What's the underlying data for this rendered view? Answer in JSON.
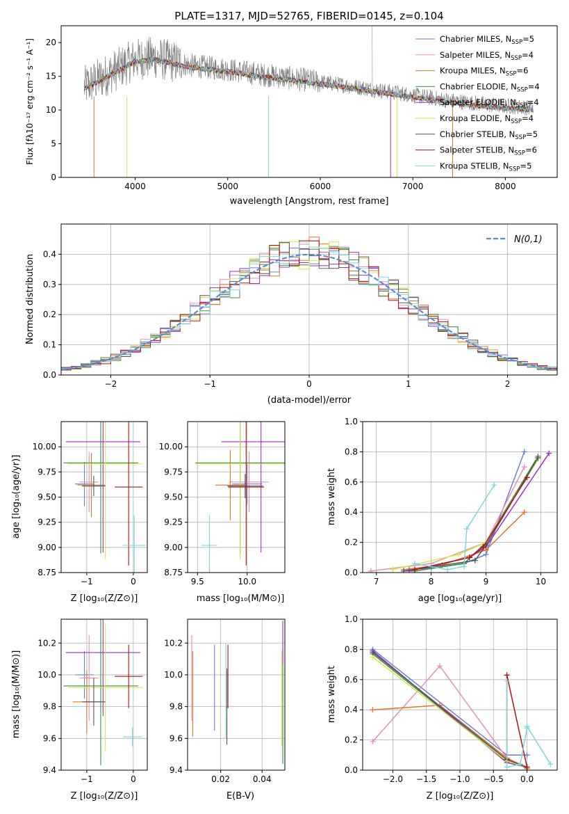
{
  "figure_title": "PLATE=1317, MJD=52765, FIBERID=0145, z=0.104",
  "series_styles": [
    {
      "model": "Chabrier MILES",
      "nssp": "5",
      "color": "#6a7fd6"
    },
    {
      "model": "Salpeter MILES",
      "nssp": "4",
      "color": "#e68fb8"
    },
    {
      "model": "Kroupa MILES",
      "nssp": "6",
      "color": "#e0772c"
    },
    {
      "model": "Chabrier ELODIE",
      "nssp": "4",
      "color": "#3d8f3d"
    },
    {
      "model": "Salpeter ELODIE",
      "nssp": "4",
      "color": "#9d2ec0"
    },
    {
      "model": "Kroupa ELODIE",
      "nssp": "4",
      "color": "#cfe84a"
    },
    {
      "model": "Chabrier STELIB",
      "nssp": "5",
      "color": "#555555"
    },
    {
      "model": "Salpeter STELIB",
      "nssp": "6",
      "color": "#b01212"
    },
    {
      "model": "Kroupa STELIB",
      "nssp": "5",
      "color": "#7fd6dc"
    }
  ],
  "chart_data": [
    {
      "id": "spectrum",
      "type": "line",
      "title": "PLATE=1317, MJD=52765, FIBERID=0145, z=0.104",
      "xlabel": "wavelength [Angstrom, rest frame]",
      "ylabel": "Flux [fλ10⁻¹⁷ erg cm⁻² s⁻¹ A⁻¹]",
      "xlim": [
        3200,
        8560
      ],
      "ylim": [
        0,
        22.5
      ],
      "xticks": [
        4000,
        5000,
        6000,
        7000,
        8000
      ],
      "yticks": [
        0,
        5,
        10,
        15,
        20
      ],
      "grid": false,
      "legend": "top-right",
      "data_color": "#7f7f7f",
      "continuum": {
        "x": [
          3450,
          3600,
          3800,
          4000,
          4200,
          4400,
          4600,
          5000,
          5400,
          5800,
          6200,
          6600,
          7000,
          7400,
          7800,
          8300
        ],
        "y": [
          13.5,
          14.5,
          16.0,
          17.5,
          17.8,
          17.2,
          16.6,
          16.0,
          15.2,
          14.5,
          13.8,
          13.0,
          12.2,
          11.4,
          10.8,
          10.3
        ]
      },
      "series": [
        {
          "name": "Chabrier MILES, N_SSP=5"
        },
        {
          "name": "Salpeter MILES, N_SSP=4"
        },
        {
          "name": "Kroupa MILES, N_SSP=6"
        },
        {
          "name": "Chabrier ELODIE, N_SSP=4"
        },
        {
          "name": "Salpeter ELODIE, N_SSP=4"
        },
        {
          "name": "Kroupa ELODIE, N_SSP=4"
        },
        {
          "name": "Chabrier STELIB, N_SSP=5"
        },
        {
          "name": "Salpeter STELIB, N_SSP=6"
        },
        {
          "name": "Kroupa STELIB, N_SSP=5"
        }
      ]
    },
    {
      "id": "residuals",
      "type": "histogram",
      "xlabel": "(data-model)/error",
      "ylabel": "Normed distribution",
      "xlim": [
        -2.5,
        2.5
      ],
      "ylim": [
        0,
        0.5
      ],
      "xticks": [
        -2,
        -1,
        0,
        1,
        2
      ],
      "yticks": [
        0.0,
        0.1,
        0.2,
        0.3,
        0.4
      ],
      "grid": true,
      "legend": "top-right",
      "reference_curve": {
        "name": "N(0,1)",
        "style": "dashed",
        "color": "#5b8ad6"
      },
      "bin_width": 0.1
    },
    {
      "id": "age_vs_Z",
      "type": "errorbar",
      "xlabel": "Z [log₁₀(Z/Z⊙)]",
      "ylabel": "age [log₁₀(age/yr)]",
      "xlim": [
        -1.55,
        0.3
      ],
      "ylim": [
        8.75,
        10.25
      ],
      "xticks": [
        -1,
        0
      ],
      "yticks": [
        8.75,
        9.0,
        9.25,
        9.5,
        9.75,
        10.0
      ],
      "grid": true,
      "points": [
        {
          "series": 0,
          "x": -1.05,
          "xerr": 0.2,
          "y": 9.63,
          "yerr": 0.22
        },
        {
          "series": 1,
          "x": -0.95,
          "xerr": 0.2,
          "y": 9.65,
          "yerr": 0.3
        },
        {
          "series": 2,
          "x": -0.9,
          "xerr": 0.3,
          "y": 9.62,
          "yerr": 0.32
        },
        {
          "series": 3,
          "x": -0.7,
          "xerr": 0.8,
          "y": 9.84,
          "yerr": 0.9
        },
        {
          "series": 4,
          "x": -0.65,
          "xerr": 0.8,
          "y": 10.05,
          "yerr": 1.1
        },
        {
          "series": 5,
          "x": -0.6,
          "xerr": 0.8,
          "y": 9.83,
          "yerr": 0.95
        },
        {
          "series": 6,
          "x": -0.85,
          "xerr": 0.25,
          "y": 9.61,
          "yerr": 0.1
        },
        {
          "series": 7,
          "x": -0.1,
          "xerr": 0.3,
          "y": 9.6,
          "yerr": 0.78
        },
        {
          "series": 8,
          "x": 0.02,
          "xerr": 0.25,
          "y": 9.02,
          "yerr": 0.3
        }
      ]
    },
    {
      "id": "age_vs_mass",
      "type": "errorbar",
      "xlabel": "mass [log₁₀(M/M⊙)]",
      "ylabel": "",
      "xlim": [
        9.4,
        10.38
      ],
      "ylim": [
        8.75,
        10.25
      ],
      "xticks": [
        9.5,
        10.0
      ],
      "yticks": [
        8.75,
        9.0,
        9.25,
        9.5,
        9.75,
        10.0
      ],
      "grid": true,
      "points": [
        {
          "series": 0,
          "x": 10.0,
          "xerr": 0.15,
          "y": 9.63,
          "yerr": 0.2
        },
        {
          "series": 1,
          "x": 10.02,
          "xerr": 0.2,
          "y": 9.65,
          "yerr": 0.3
        },
        {
          "series": 2,
          "x": 9.83,
          "xerr": 0.15,
          "y": 9.62,
          "yerr": 0.35
        },
        {
          "series": 3,
          "x": 9.93,
          "xerr": 0.45,
          "y": 9.84,
          "yerr": 0.9
        },
        {
          "series": 4,
          "x": 10.14,
          "xerr": 0.4,
          "y": 10.05,
          "yerr": 1.1
        },
        {
          "series": 5,
          "x": 9.93,
          "xerr": 0.45,
          "y": 9.83,
          "yerr": 0.95
        },
        {
          "series": 6,
          "x": 9.98,
          "xerr": 0.18,
          "y": 9.61,
          "yerr": 0.12
        },
        {
          "series": 7,
          "x": 9.99,
          "xerr": 0.18,
          "y": 9.6,
          "yerr": 0.78
        },
        {
          "series": 8,
          "x": 9.62,
          "xerr": 0.08,
          "y": 9.02,
          "yerr": 0.3
        }
      ]
    },
    {
      "id": "mass_weight_vs_age",
      "type": "line",
      "xlabel": "age [log₁₀(age/yr)]",
      "ylabel": "mass weight",
      "xlim": [
        6.75,
        10.3
      ],
      "ylim": [
        0.0,
        1.0
      ],
      "xticks": [
        7,
        8,
        9,
        10
      ],
      "yticks": [
        0.0,
        0.2,
        0.4,
        0.6,
        0.8,
        1.0
      ],
      "grid": true,
      "series": [
        {
          "series": 0,
          "x": [
            7.6,
            8.0,
            8.6,
            9.0,
            9.7
          ],
          "y": [
            0.02,
            0.03,
            0.06,
            0.12,
            0.8
          ]
        },
        {
          "series": 1,
          "x": [
            6.9,
            8.0,
            9.0,
            9.7
          ],
          "y": [
            0.01,
            0.06,
            0.2,
            0.7
          ]
        },
        {
          "series": 2,
          "x": [
            7.5,
            8.2,
            9.0,
            9.7
          ],
          "y": [
            0.02,
            0.05,
            0.15,
            0.4
          ]
        },
        {
          "series": 3,
          "x": [
            7.7,
            8.6,
            9.0,
            9.95
          ],
          "y": [
            0.01,
            0.06,
            0.2,
            0.77
          ]
        },
        {
          "series": 4,
          "x": [
            7.6,
            8.7,
            9.0,
            10.15
          ],
          "y": [
            0.01,
            0.1,
            0.17,
            0.79
          ]
        },
        {
          "series": 5,
          "x": [
            7.3,
            8.5,
            9.0,
            9.95
          ],
          "y": [
            0.02,
            0.12,
            0.2,
            0.75
          ]
        },
        {
          "series": 6,
          "x": [
            7.5,
            8.8,
            9.0,
            9.95
          ],
          "y": [
            0.01,
            0.08,
            0.18,
            0.76
          ]
        },
        {
          "series": 7,
          "x": [
            7.7,
            8.7,
            8.95,
            9.75
          ],
          "y": [
            0.02,
            0.1,
            0.17,
            0.63
          ]
        },
        {
          "series": 8,
          "x": [
            7.7,
            8.3,
            8.6,
            8.65,
            9.15
          ],
          "y": [
            0.06,
            0.02,
            0.04,
            0.29,
            0.58
          ]
        }
      ]
    },
    {
      "id": "mass_vs_Z",
      "type": "errorbar",
      "xlabel": "Z [log₁₀(Z/Z⊙)]",
      "ylabel": "mass [log₁₀(M/M⊙)]",
      "xlim": [
        -1.55,
        0.3
      ],
      "ylim": [
        9.4,
        10.35
      ],
      "xticks": [
        -1,
        0
      ],
      "yticks": [
        9.4,
        9.6,
        9.8,
        10.0,
        10.2
      ],
      "grid": true,
      "points": [
        {
          "series": 0,
          "x": -1.05,
          "xerr": 0.2,
          "y": 10.0,
          "yerr": 0.15
        },
        {
          "series": 1,
          "x": -0.95,
          "xerr": 0.2,
          "y": 9.98,
          "yerr": 0.27
        },
        {
          "series": 2,
          "x": -1.0,
          "xerr": 0.3,
          "y": 9.83,
          "yerr": 0.2
        },
        {
          "series": 3,
          "x": -0.7,
          "xerr": 0.8,
          "y": 9.93,
          "yerr": 0.5
        },
        {
          "series": 4,
          "x": -0.65,
          "xerr": 0.8,
          "y": 10.14,
          "yerr": 0.4
        },
        {
          "series": 5,
          "x": -0.6,
          "xerr": 0.8,
          "y": 9.92,
          "yerr": 0.4
        },
        {
          "series": 6,
          "x": -0.85,
          "xerr": 0.25,
          "y": 9.83,
          "yerr": 0.15
        },
        {
          "series": 7,
          "x": -0.1,
          "xerr": 0.3,
          "y": 9.99,
          "yerr": 0.2
        },
        {
          "series": 8,
          "x": -0.02,
          "xerr": 0.2,
          "y": 9.61,
          "yerr": 0.06
        }
      ]
    },
    {
      "id": "mass_vs_ebv",
      "type": "errorbar",
      "xlabel": "E(B-V)",
      "ylabel": "",
      "xlim": [
        0.004,
        0.051
      ],
      "ylim": [
        9.4,
        10.35
      ],
      "xticks": [
        0.02,
        0.04
      ],
      "yticks": [
        9.4,
        9.6,
        9.8,
        10.0,
        10.2
      ],
      "grid": true,
      "points": [
        {
          "series": 0,
          "x": 0.017,
          "y": 9.92,
          "yerr": 0.27
        },
        {
          "series": 1,
          "x": 0.006,
          "y": 9.98,
          "yerr": 0.27
        },
        {
          "series": 2,
          "x": 0.0065,
          "y": 9.88,
          "yerr": 0.27
        },
        {
          "series": 3,
          "x": 0.05,
          "y": 9.8,
          "yerr": 0.36
        },
        {
          "series": 4,
          "x": 0.05,
          "y": 10.2,
          "yerr": 0.14
        },
        {
          "series": 5,
          "x": 0.0495,
          "y": 9.85,
          "yerr": 0.3
        },
        {
          "series": 6,
          "x": 0.023,
          "y": 9.8,
          "yerr": 0.24
        },
        {
          "series": 7,
          "x": 0.0235,
          "y": 9.99,
          "yerr": 0.2
        },
        {
          "series": 8,
          "x": 0.0225,
          "y": 9.9,
          "yerr": 0.3
        }
      ]
    },
    {
      "id": "mass_weight_vs_Z",
      "type": "line",
      "xlabel": "Z [log₁₀(Z/Z⊙)]",
      "ylabel": "mass weight",
      "xlim": [
        -2.45,
        0.45
      ],
      "ylim": [
        0.0,
        1.0
      ],
      "xticks": [
        -2.0,
        -1.5,
        -1.0,
        -0.5,
        0.0
      ],
      "yticks": [
        0.0,
        0.2,
        0.4,
        0.6,
        0.8,
        1.0
      ],
      "grid": true,
      "series": [
        {
          "series": 0,
          "x": [
            -2.3,
            -0.3,
            0.0
          ],
          "y": [
            0.8,
            0.1,
            0.1
          ]
        },
        {
          "series": 1,
          "x": [
            -2.3,
            -1.3,
            -0.3,
            0.0
          ],
          "y": [
            0.19,
            0.69,
            0.08,
            0.02
          ]
        },
        {
          "series": 2,
          "x": [
            -2.3,
            -1.3,
            -0.3,
            0.0
          ],
          "y": [
            0.4,
            0.43,
            0.08,
            0.01
          ]
        },
        {
          "series": 3,
          "x": [
            -2.3,
            -0.3,
            0.0
          ],
          "y": [
            0.77,
            0.06,
            0.02
          ]
        },
        {
          "series": 4,
          "x": [
            -2.3,
            -0.3,
            0.0
          ],
          "y": [
            0.79,
            0.05,
            0.02
          ]
        },
        {
          "series": 5,
          "x": [
            -2.3,
            -0.3,
            0.0
          ],
          "y": [
            0.75,
            0.06,
            0.02
          ]
        },
        {
          "series": 6,
          "x": [
            -2.3,
            -0.3,
            0.0
          ],
          "y": [
            0.78,
            0.07,
            0.02
          ]
        },
        {
          "series": 7,
          "x": [
            -0.3,
            -0.3,
            0.0
          ],
          "y": [
            0.07,
            0.63,
            0.02
          ]
        },
        {
          "series": 8,
          "x": [
            -0.3,
            -0.3,
            -0.1,
            0.0,
            0.0,
            0.35
          ],
          "y": [
            0.59,
            0.02,
            0.04,
            0.28,
            0.29,
            0.04
          ]
        }
      ]
    }
  ]
}
